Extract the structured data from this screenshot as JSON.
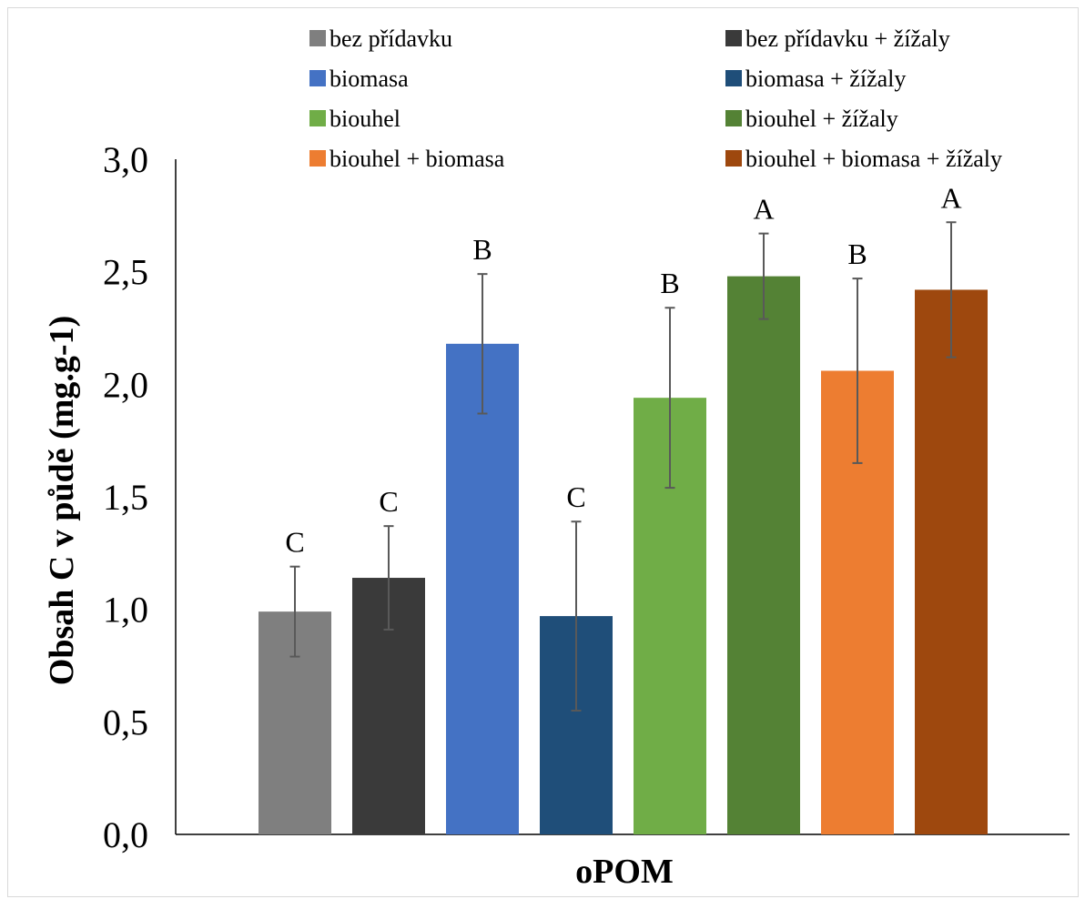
{
  "chart_data": {
    "type": "bar",
    "xlabel": "oPOM",
    "ylabel": "Obsah C v půdě (mg.g-1)",
    "ylim": [
      0,
      3
    ],
    "yticks": [
      "0,0",
      "0,5",
      "1,0",
      "1,5",
      "2,0",
      "2,5",
      "3,0"
    ],
    "grid": false,
    "legend_position": "top",
    "categories": [
      "oPOM"
    ],
    "series": [
      {
        "name": "bez přídavku",
        "values": [
          0.99
        ],
        "error": [
          0.2
        ],
        "significance": "C",
        "color": "#7f7f7f"
      },
      {
        "name": "bez přídavku + žížaly",
        "values": [
          1.14
        ],
        "error": [
          0.23
        ],
        "significance": "C",
        "color": "#3a3a3a"
      },
      {
        "name": "biomasa",
        "values": [
          2.18
        ],
        "error": [
          0.31
        ],
        "significance": "B",
        "color": "#4472c4"
      },
      {
        "name": "biomasa + žížaly",
        "values": [
          0.97
        ],
        "error": [
          0.42
        ],
        "significance": "C",
        "color": "#1f4e79"
      },
      {
        "name": "biouhel",
        "values": [
          1.94
        ],
        "error": [
          0.4
        ],
        "significance": "B",
        "color": "#70ad47"
      },
      {
        "name": "biouhel + žížaly",
        "values": [
          2.48
        ],
        "error": [
          0.19
        ],
        "significance": "A",
        "color": "#548235"
      },
      {
        "name": "biouhel + biomasa",
        "values": [
          2.06
        ],
        "error": [
          0.41
        ],
        "significance": "B",
        "color": "#ed7d31"
      },
      {
        "name": "biouhel + biomasa + žížaly",
        "values": [
          2.42
        ],
        "error": [
          0.3
        ],
        "significance": "A",
        "color": "#9e480e"
      }
    ]
  }
}
